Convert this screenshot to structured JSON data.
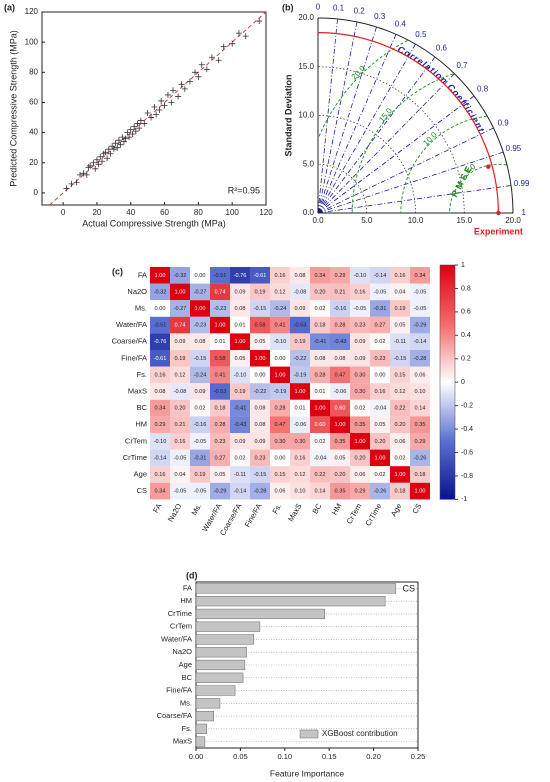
{
  "chart_data": [
    {
      "type": "scatter",
      "panel_label": "(a)",
      "xlabel": "Actual Compressive Strength (MPa)",
      "ylabel": "Predicted Compressive Strength (MPa)",
      "annotation": "R²=0.95",
      "color": "#333333",
      "ref_color": "#d04040",
      "x": [
        2,
        5,
        8,
        10,
        12,
        14,
        15,
        16,
        18,
        19,
        20,
        21,
        22,
        23,
        24,
        25,
        26,
        27,
        28,
        29,
        30,
        31,
        32,
        33,
        34,
        35,
        36,
        37,
        38,
        39,
        40,
        41,
        42,
        43,
        44,
        45,
        46,
        48,
        50,
        52,
        54,
        55,
        57,
        58,
        60,
        62,
        64,
        65,
        68,
        70,
        72,
        75,
        78,
        80,
        82,
        85,
        88,
        92,
        95,
        100,
        104,
        108,
        116
      ],
      "y": [
        3,
        6,
        7,
        12,
        13,
        12,
        17,
        18,
        20,
        16,
        22,
        19,
        24,
        21,
        26,
        27,
        23,
        29,
        26,
        31,
        29,
        33,
        30,
        35,
        32,
        37,
        34,
        36,
        40,
        37,
        42,
        39,
        44,
        41,
        46,
        43,
        48,
        46,
        53,
        50,
        57,
        52,
        55,
        61,
        58,
        65,
        60,
        68,
        64,
        72,
        69,
        74,
        80,
        77,
        85,
        82,
        90,
        88,
        97,
        99,
        106,
        104,
        114
      ],
      "xlim": [
        -12.5,
        120
      ],
      "ylim": [
        -8,
        120
      ],
      "xticks": [
        0,
        20,
        40,
        60,
        80,
        100,
        120
      ],
      "yticks": [
        0,
        20,
        40,
        60,
        80,
        100,
        120
      ]
    },
    {
      "type": "taylor",
      "panel_label": "(b)",
      "ylabel": "Standard Deviation",
      "corr_label": "Correlation Coefficient",
      "rmse_label": "R M S E",
      "ref_label": "Experiment",
      "stdlim": [
        0,
        20
      ],
      "std_ticks": [
        {
          "value": 0,
          "label": "0.0"
        },
        {
          "value": 5,
          "label": "5.0"
        },
        {
          "value": 10,
          "label": "10.0"
        },
        {
          "value": 15,
          "label": "15.0"
        },
        {
          "value": 20,
          "label": "20.0"
        }
      ],
      "corr_ticks": [
        0,
        0.1,
        0.2,
        0.3,
        0.4,
        0.5,
        0.6,
        0.7,
        0.8,
        0.9,
        0.95,
        0.99,
        1
      ],
      "rmse_ticks": [
        {
          "value": 5,
          "label": "5.0"
        },
        {
          "value": 10,
          "label": "10.0"
        },
        {
          "value": 15,
          "label": "15.0"
        },
        {
          "value": 20,
          "label": "20.0"
        }
      ],
      "reference_std": 18.5,
      "reference_color": "#e02020",
      "corr_color": "#1c1ca0",
      "rmse_color": "#1a8a1a",
      "points": [
        {
          "std": 18.1,
          "corr": 0.965,
          "color": "#e02020"
        }
      ]
    },
    {
      "type": "heatmap",
      "panel_label": "(c)",
      "labels": [
        "FA",
        "Na2O",
        "Ms.",
        "Water/FA",
        "Coarse/FA",
        "Fine/FA",
        "Fs.",
        "MaxS",
        "BC",
        "HM",
        "CrTem",
        "CrTime",
        "Age",
        "CS"
      ],
      "values": [
        [
          1,
          -0.32,
          0,
          -0.51,
          -0.76,
          -0.61,
          0.16,
          0.08,
          0.34,
          0.29,
          -0.1,
          -0.14,
          0.16,
          0.34
        ],
        [
          -0.32,
          1,
          -0.27,
          0.74,
          0.09,
          0.19,
          0.12,
          -0.08,
          0.2,
          0.21,
          0.16,
          -0.05,
          0.04,
          -0.05
        ],
        [
          0,
          -0.27,
          1,
          -0.23,
          0.08,
          -0.15,
          -0.24,
          0.09,
          0.02,
          -0.16,
          -0.05,
          -0.31,
          0.19,
          -0.05
        ],
        [
          -0.51,
          0.74,
          -0.23,
          1,
          0.01,
          0.58,
          0.41,
          -0.53,
          0.18,
          0.28,
          0.23,
          0.27,
          0.05,
          -0.29
        ],
        [
          -0.76,
          0.09,
          0.08,
          0.01,
          1,
          0.05,
          -0.1,
          0.19,
          -0.41,
          -0.43,
          0.09,
          0.02,
          -0.11,
          -0.14
        ],
        [
          -0.61,
          0.19,
          -0.15,
          0.58,
          0.05,
          1,
          0,
          -0.22,
          0.08,
          0.08,
          0.09,
          0.23,
          -0.15,
          -0.28
        ],
        [
          0.16,
          0.12,
          -0.24,
          0.41,
          -0.1,
          0,
          1,
          -0.19,
          0.28,
          0.47,
          0.3,
          0,
          0.15,
          0.06
        ],
        [
          0.08,
          -0.08,
          0.09,
          -0.53,
          0.19,
          -0.22,
          -0.19,
          1,
          0.01,
          -0.06,
          0.3,
          0.16,
          0.12,
          0.1
        ],
        [
          0.34,
          0.2,
          0.02,
          0.18,
          -0.41,
          0.08,
          0.28,
          0.01,
          1,
          0.6,
          0.02,
          -0.04,
          0.22,
          0.14
        ],
        [
          0.29,
          0.21,
          -0.16,
          0.28,
          -0.43,
          0.08,
          0.47,
          -0.06,
          0.6,
          1,
          0.35,
          0.05,
          0.2,
          0.35
        ],
        [
          -0.1,
          0.16,
          -0.05,
          0.23,
          0.09,
          0.09,
          0.3,
          0.3,
          0.02,
          0.35,
          1,
          0.2,
          0.06,
          0.29
        ],
        [
          -0.14,
          -0.05,
          -0.31,
          0.27,
          0.02,
          0.23,
          0,
          0.16,
          -0.04,
          0.05,
          0.2,
          1,
          0.02,
          -0.26
        ],
        [
          0.16,
          0.04,
          0.19,
          0.05,
          -0.11,
          -0.15,
          0.15,
          0.12,
          0.22,
          0.2,
          0.06,
          0.02,
          1,
          0.18
        ],
        [
          0.34,
          -0.05,
          -0.05,
          -0.29,
          -0.14,
          -0.28,
          0.06,
          0.1,
          0.14,
          0.35,
          0.29,
          -0.26,
          0.18,
          1
        ]
      ],
      "value_labels": [
        [
          "1.00",
          "-0.32",
          "0.00",
          "-0.51",
          "-0.76",
          "-0.61",
          "0.16",
          "0.08",
          "0.34",
          "0.29",
          "-0.10",
          "-0.14",
          "0.16",
          "0.34"
        ],
        [
          "-0.32",
          "1.00",
          "-0.27",
          "0.74",
          "0.09",
          "0.19",
          "0.12",
          "-0.08",
          "0.20",
          "0.21",
          "0.16",
          "-0.05",
          "0.04",
          "-0.05"
        ],
        [
          "0.00",
          "-0.27",
          "1.00",
          "-0.23",
          "0.08",
          "-0.15",
          "-0.24",
          "0.09",
          "0.02",
          "-0.16",
          "-0.05",
          "-0.31",
          "0.19",
          "-0.05"
        ],
        [
          "-0.51",
          "0.74",
          "-0.23",
          "1.00",
          "0.01",
          "0.58",
          "0.41",
          "-0.53",
          "0.18",
          "0.28",
          "0.23",
          "0.27",
          "0.05",
          "-0.29"
        ],
        [
          "-0.76",
          "0.09",
          "0.08",
          "0.01",
          "1.00",
          "0.05",
          "-0.10",
          "0.19",
          "-0.41",
          "-0.43",
          "0.09",
          "0.02",
          "-0.11",
          "-0.14"
        ],
        [
          "-0.61",
          "0.19",
          "-0.15",
          "0.58",
          "0.05",
          "1.00",
          "0.00",
          "-0.22",
          "0.08",
          "0.08",
          "0.09",
          "0.23",
          "-0.15",
          "-0.28"
        ],
        [
          "0.16",
          "0.12",
          "-0.24",
          "0.41",
          "-0.10",
          "0.00",
          "1.00",
          "-0.19",
          "0.28",
          "0.47",
          "0.30",
          "0.00",
          "0.15",
          "0.06"
        ],
        [
          "0.08",
          "-0.08",
          "0.09",
          "-0.53",
          "0.19",
          "-0.22",
          "-0.19",
          "1.00",
          "0.01",
          "-0.06",
          "0.30",
          "0.16",
          "0.12",
          "0.10"
        ],
        [
          "0.34",
          "0.20",
          "0.02",
          "0.18",
          "-0.41",
          "0.08",
          "0.28",
          "0.01",
          "1.00",
          "0.60",
          "0.02",
          "-0.04",
          "0.22",
          "0.14"
        ],
        [
          "0.29",
          "0.21",
          "-0.16",
          "0.28",
          "-0.43",
          "0.08",
          "0.47",
          "-0.06",
          "0.60",
          "1.00",
          "0.35",
          "0.05",
          "0.20",
          "0.35"
        ],
        [
          "-0.10",
          "0.16",
          "-0.05",
          "0.23",
          "0.09",
          "0.09",
          "0.30",
          "0.30",
          "0.02",
          "0.35",
          "1.00",
          "0.20",
          "0.06",
          "0.29"
        ],
        [
          "-0.14",
          "-0.05",
          "-0.31",
          "0.27",
          "0.02",
          "0.23",
          "0.00",
          "0.16",
          "-0.04",
          "0.05",
          "0.20",
          "1.00",
          "0.02",
          "-0.26"
        ],
        [
          "0.16",
          "0.04",
          "0.19",
          "0.05",
          "-0.11",
          "-0.15",
          "0.15",
          "0.12",
          "0.22",
          "0.20",
          "0.06",
          "0.02",
          "1.00",
          "0.18"
        ],
        [
          "0.34",
          "-0.05",
          "-0.05",
          "-0.29",
          "-0.14",
          "-0.28",
          "0.06",
          "0.10",
          "0.14",
          "0.35",
          "0.29",
          "-0.26",
          "0.18",
          "1.00"
        ]
      ],
      "clim": [
        -1,
        1
      ],
      "colormap": [
        "#0a128c",
        "#5a70d2",
        "#ffffff",
        "#f26a6a",
        "#dc0010"
      ],
      "cbar_ticks": [
        1,
        0.8,
        0.6,
        0.4,
        0.2,
        0,
        -0.2,
        -0.4,
        -0.6,
        -0.8,
        -1
      ]
    },
    {
      "type": "barh",
      "panel_label": "(d)",
      "title": "CS",
      "xlabel": "Feature Importance",
      "categories": [
        "FA",
        "HM",
        "CrTime",
        "CrTem",
        "Water/FA",
        "Na2O",
        "Age",
        "BC",
        "Fine/FA",
        "Ms.",
        "Coarse/FA",
        "Fs.",
        "MaxS"
      ],
      "series": [
        {
          "name": "XGBoost contribution",
          "color": "#c4c4c4",
          "values": [
            0.225,
            0.213,
            0.145,
            0.072,
            0.065,
            0.057,
            0.055,
            0.053,
            0.044,
            0.027,
            0.02,
            0.012,
            0.01
          ]
        }
      ],
      "xlim": [
        0,
        0.25
      ],
      "xticks": [
        {
          "value": 0,
          "label": "0.00"
        },
        0.05,
        {
          "value": 0.1,
          "label": "0.10"
        },
        0.15,
        {
          "value": 0.2,
          "label": "0.20"
        },
        0.25
      ],
      "grid": true,
      "legend": "lower right"
    }
  ]
}
